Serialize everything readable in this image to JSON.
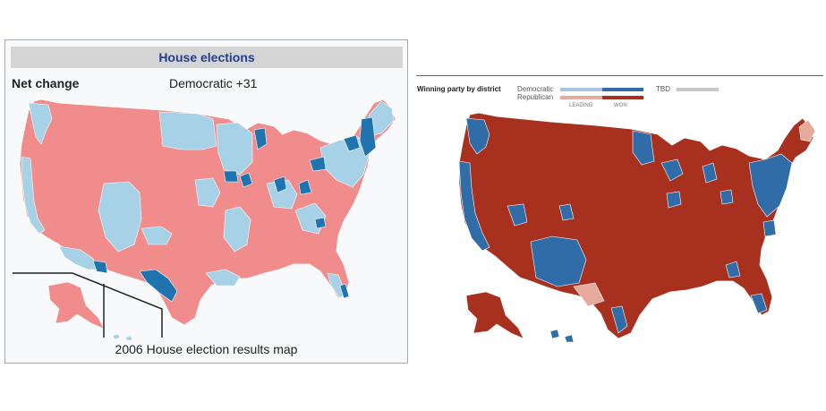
{
  "infobox": {
    "header": "House elections",
    "net_change_label": "Net change",
    "net_change_value": "Democratic +31",
    "caption": "2006 House election results map"
  },
  "result_map": {
    "title": "Winning party by district",
    "legend": {
      "democratic": "Democratic",
      "republican": "Republican",
      "tbd": "TBD",
      "leading": "LEADING",
      "won": "WON"
    }
  },
  "colors": {
    "left_republican": "#f08c8c",
    "left_democratic": "#a6d1e6",
    "left_dem_gain": "#1f74b0",
    "right_republican_won": "#a8301f",
    "right_democratic_won": "#2f6ca8",
    "right_republican_leading": "#e7a89d",
    "right_democratic_leading": "#a9c4dc",
    "tbd": "#c8c8c8"
  }
}
